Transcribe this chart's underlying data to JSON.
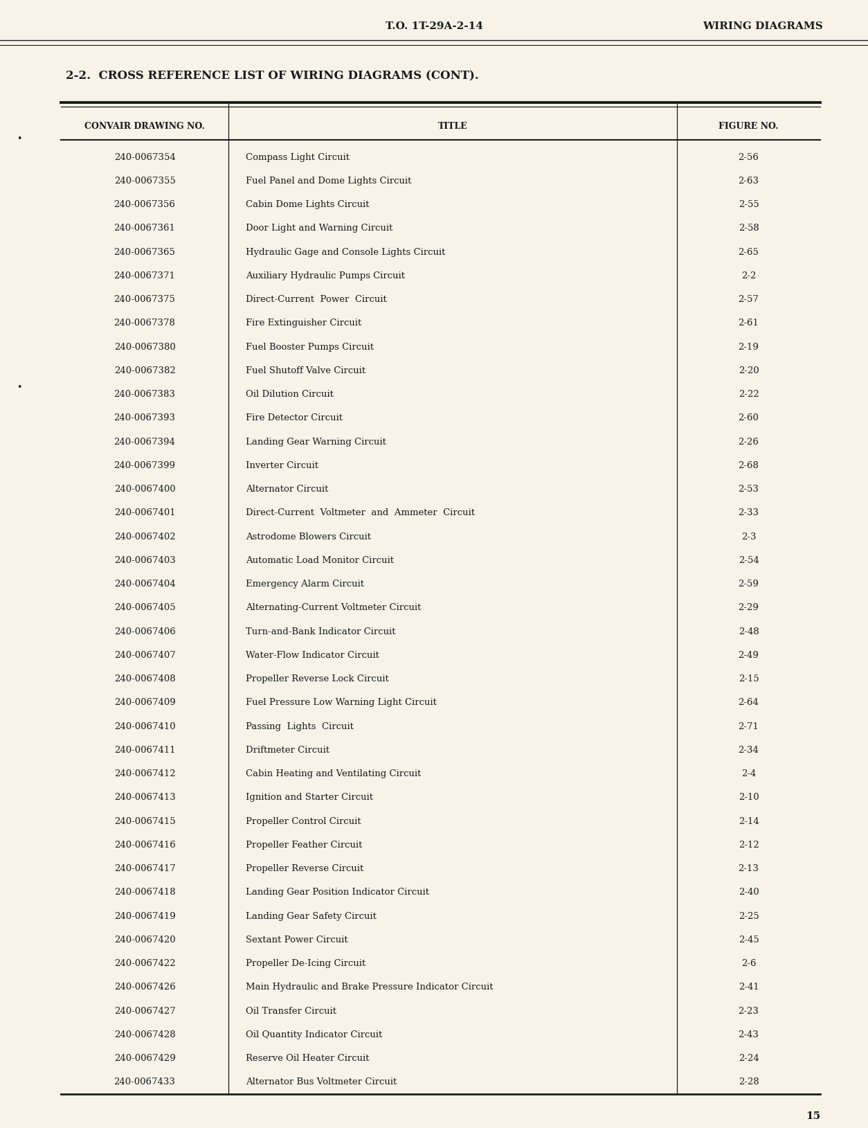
{
  "header_to": "T.O. 1T-29A-2-14",
  "header_right": "WIRING DIAGRAMS",
  "section_title": "2-2.  CROSS REFERENCE LIST OF WIRING DIAGRAMS (CONT).",
  "col1_header": "CONVAIR DRAWING NO.",
  "col2_header": "TITLE",
  "col3_header": "FIGURE NO.",
  "page_number": "15",
  "bg_color": "#f7f3e8",
  "text_color": "#1a1a1a",
  "rows": [
    [
      "240-0067354",
      "Compass Light Circuit",
      "2-56"
    ],
    [
      "240-0067355",
      "Fuel Panel and Dome Lights Circuit",
      "2-63"
    ],
    [
      "240-0067356",
      "Cabin Dome Lights Circuit",
      "2-55"
    ],
    [
      "240-0067361",
      "Door Light and Warning Circuit",
      "2-58"
    ],
    [
      "240-0067365",
      "Hydraulic Gage and Console Lights Circuit",
      "2-65"
    ],
    [
      "240-0067371",
      "Auxiliary Hydraulic Pumps Circuit",
      "2-2"
    ],
    [
      "240-0067375",
      "Direct-Current  Power  Circuit",
      "2-57"
    ],
    [
      "240-0067378",
      "Fire Extinguisher Circuit",
      "2-61"
    ],
    [
      "240-0067380",
      "Fuel Booster Pumps Circuit",
      "2-19"
    ],
    [
      "240-0067382",
      "Fuel Shutoff Valve Circuit",
      "2-20"
    ],
    [
      "240-0067383",
      "Oil Dilution Circuit",
      "2-22"
    ],
    [
      "240-0067393",
      "Fire Detector Circuit",
      "2-60"
    ],
    [
      "240-0067394",
      "Landing Gear Warning Circuit",
      "2-26"
    ],
    [
      "240-0067399",
      "Inverter Circuit",
      "2-68"
    ],
    [
      "240-0067400",
      "Alternator Circuit",
      "2-53"
    ],
    [
      "240-0067401",
      "Direct-Current  Voltmeter  and  Ammeter  Circuit",
      "2-33"
    ],
    [
      "240-0067402",
      "Astrodome Blowers Circuit",
      "2-3"
    ],
    [
      "240-0067403",
      "Automatic Load Monitor Circuit",
      "2-54"
    ],
    [
      "240-0067404",
      "Emergency Alarm Circuit",
      "2-59"
    ],
    [
      "240-0067405",
      "Alternating-Current Voltmeter Circuit",
      "2-29"
    ],
    [
      "240-0067406",
      "Turn-and-Bank Indicator Circuit",
      "2-48"
    ],
    [
      "240-0067407",
      "Water-Flow Indicator Circuit",
      "2-49"
    ],
    [
      "240-0067408",
      "Propeller Reverse Lock Circuit",
      "2-15"
    ],
    [
      "240-0067409",
      "Fuel Pressure Low Warning Light Circuit",
      "2-64"
    ],
    [
      "240-0067410",
      "Passing  Lights  Circuit",
      "2-71"
    ],
    [
      "240-0067411",
      "Driftmeter Circuit",
      "2-34"
    ],
    [
      "240-0067412",
      "Cabin Heating and Ventilating Circuit",
      "2-4"
    ],
    [
      "240-0067413",
      "Ignition and Starter Circuit",
      "2-10"
    ],
    [
      "240-0067415",
      "Propeller Control Circuit",
      "2-14"
    ],
    [
      "240-0067416",
      "Propeller Feather Circuit",
      "2-12"
    ],
    [
      "240-0067417",
      "Propeller Reverse Circuit",
      "2-13"
    ],
    [
      "240-0067418",
      "Landing Gear Position Indicator Circuit",
      "2-40"
    ],
    [
      "240-0067419",
      "Landing Gear Safety Circuit",
      "2-25"
    ],
    [
      "240-0067420",
      "Sextant Power Circuit",
      "2-45"
    ],
    [
      "240-0067422",
      "Propeller De-Icing Circuit",
      "2-6"
    ],
    [
      "240-0067426",
      "Main Hydraulic and Brake Pressure Indicator Circuit",
      "2-41"
    ],
    [
      "240-0067427",
      "Oil Transfer Circuit",
      "2-23"
    ],
    [
      "240-0067428",
      "Oil Quantity Indicator Circuit",
      "2-43"
    ],
    [
      "240-0067429",
      "Reserve Oil Heater Circuit",
      "2-24"
    ],
    [
      "240-0067433",
      "Alternator Bus Voltmeter Circuit",
      "2-28"
    ]
  ]
}
